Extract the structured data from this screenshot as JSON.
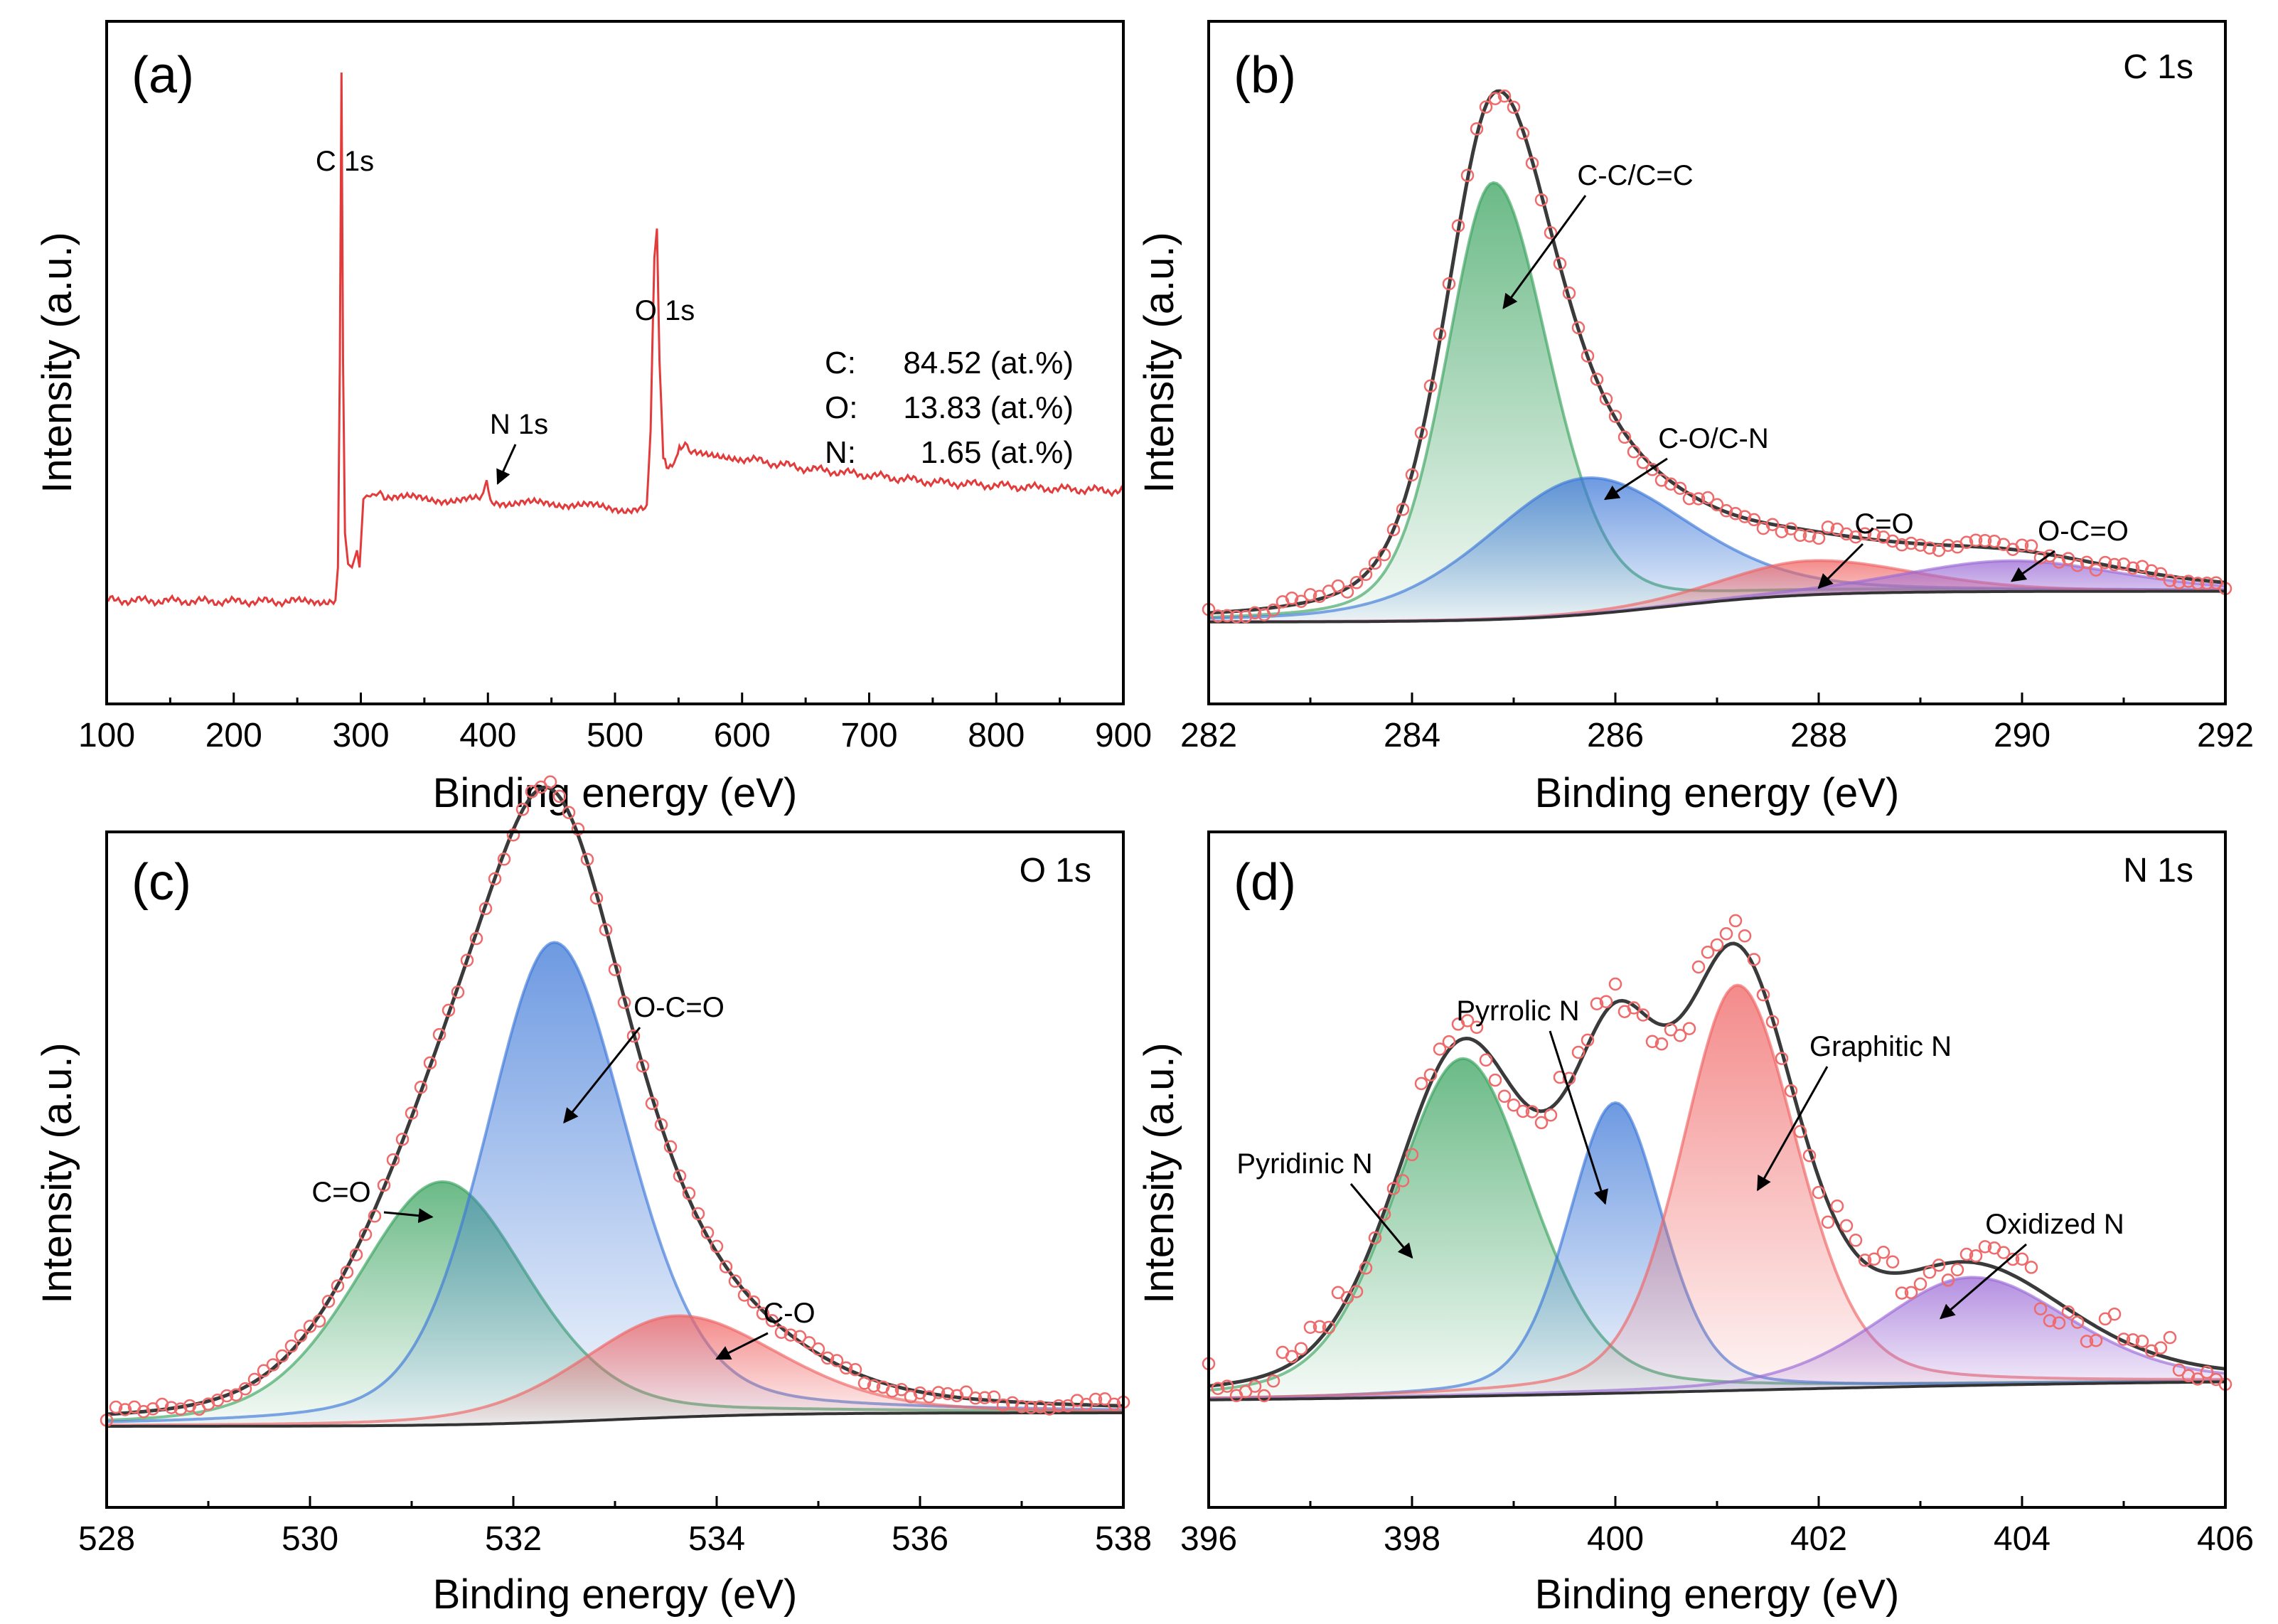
{
  "chart_data": [
    {
      "panel": "(a)",
      "type": "line",
      "corner_label": "",
      "xlabel": "Binding energy (eV)",
      "ylabel": "Intensity (a.u.)",
      "xlim": [
        100,
        900
      ],
      "ylim": [
        0,
        1.0
      ],
      "xticks": [
        100,
        200,
        300,
        400,
        500,
        600,
        700,
        800,
        900
      ],
      "colors": {
        "survey": "#e23b3b"
      },
      "survey_points": [
        [
          100,
          0.152
        ],
        [
          150,
          0.151
        ],
        [
          200,
          0.15
        ],
        [
          250,
          0.15
        ],
        [
          280,
          0.152
        ],
        [
          282,
          0.2
        ],
        [
          283.5,
          0.5
        ],
        [
          284.8,
          0.925
        ],
        [
          286,
          0.5
        ],
        [
          287.5,
          0.25
        ],
        [
          290,
          0.205
        ],
        [
          293,
          0.2
        ],
        [
          297,
          0.225
        ],
        [
          299,
          0.2
        ],
        [
          302,
          0.3
        ],
        [
          306,
          0.308
        ],
        [
          320,
          0.305
        ],
        [
          350,
          0.3
        ],
        [
          380,
          0.298
        ],
        [
          395,
          0.3
        ],
        [
          399,
          0.33
        ],
        [
          402,
          0.297
        ],
        [
          420,
          0.294
        ],
        [
          450,
          0.294
        ],
        [
          480,
          0.29
        ],
        [
          510,
          0.285
        ],
        [
          525,
          0.285
        ],
        [
          528,
          0.4
        ],
        [
          531,
          0.65
        ],
        [
          533,
          0.69
        ],
        [
          535,
          0.5
        ],
        [
          538,
          0.36
        ],
        [
          542,
          0.345
        ],
        [
          548,
          0.36
        ],
        [
          552,
          0.38
        ],
        [
          560,
          0.372
        ],
        [
          600,
          0.36
        ],
        [
          650,
          0.345
        ],
        [
          700,
          0.335
        ],
        [
          750,
          0.325
        ],
        [
          800,
          0.32
        ],
        [
          850,
          0.315
        ],
        [
          900,
          0.312
        ]
      ],
      "peak_labels": [
        {
          "text": "C 1s",
          "x": 284.8,
          "y": 0.925
        },
        {
          "text": "N 1s",
          "x": 399,
          "y": 0.33
        },
        {
          "text": "O 1s",
          "x": 532,
          "y": 0.69
        }
      ],
      "composition": [
        {
          "element": "C:",
          "value": "84.52 (at.%)"
        },
        {
          "element": "O:",
          "value": "13.83 (at.%)"
        },
        {
          "element": "N:",
          "value": "1.65 (at.%)"
        }
      ]
    },
    {
      "panel": "(b)",
      "type": "line",
      "corner_label": "C 1s",
      "xlabel": "Binding energy (eV)",
      "ylabel": "Intensity (a.u.)",
      "xlim": [
        282,
        292
      ],
      "ylim": [
        0,
        1.0
      ],
      "xticks": [
        282,
        284,
        286,
        288,
        290,
        292
      ],
      "baseline": {
        "start": [
          282,
          0.12
        ],
        "sigmoid_center": 286.5,
        "sigmoid_width": 0.7,
        "rise": 0.045
      },
      "components": [
        {
          "name": "C-C/C=C",
          "center": 284.8,
          "amplitude": 0.64,
          "fwhm_left": 1.1,
          "fwhm_right": 1.3,
          "color": "#3aa35f"
        },
        {
          "name": "C-O/C-N",
          "center": 285.7,
          "amplitude": 0.2,
          "fwhm_left": 2.3,
          "fwhm_right": 2.4,
          "color": "#3d78d8"
        },
        {
          "name": "C=O",
          "center": 287.9,
          "amplitude": 0.05,
          "fwhm_left": 2.0,
          "fwhm_right": 2.4,
          "color": "#f06464"
        },
        {
          "name": "O-C=O",
          "center": 289.9,
          "amplitude": 0.045,
          "fwhm_left": 2.5,
          "fwhm_right": 2.5,
          "color": "#9b6ad6"
        }
      ],
      "labels": [
        {
          "text": "C-C/C=C",
          "arrow_to": [
            284.9,
            0.58
          ]
        },
        {
          "text": "C-O/C-N",
          "arrow_to": [
            285.9,
            0.3
          ]
        },
        {
          "text": "C=O",
          "arrow_to": [
            288.0,
            0.17
          ]
        },
        {
          "text": "O-C=O",
          "arrow_to": [
            289.9,
            0.18
          ]
        }
      ],
      "scatter_color": "#ef6b6b"
    },
    {
      "panel": "(c)",
      "type": "line",
      "corner_label": "O 1s",
      "xlabel": "Binding energy (eV)",
      "ylabel": "Intensity (a.u.)",
      "xlim": [
        528,
        538
      ],
      "ylim": [
        0,
        1.0
      ],
      "xticks": [
        528,
        530,
        532,
        534,
        536,
        538
      ],
      "baseline": {
        "start": [
          528,
          0.12
        ],
        "sigmoid_center": 533,
        "sigmoid_width": 0.8,
        "rise": 0.02
      },
      "components": [
        {
          "name": "C=O",
          "center": 531.3,
          "amplitude": 0.36,
          "fwhm_left": 2.0,
          "fwhm_right": 2.0,
          "color": "#3aa35f"
        },
        {
          "name": "O-C=O",
          "center": 532.4,
          "amplitude": 0.71,
          "fwhm_left": 1.6,
          "fwhm_right": 1.7,
          "color": "#3d78d8"
        },
        {
          "name": "C-O",
          "center": 533.6,
          "amplitude": 0.15,
          "fwhm_left": 2.2,
          "fwhm_right": 2.4,
          "color": "#f06464"
        }
      ],
      "labels": [
        {
          "text": "O-C=O",
          "arrow_to": [
            532.5,
            0.57
          ]
        },
        {
          "text": "C=O",
          "arrow_to": [
            531.2,
            0.43
          ]
        },
        {
          "text": "C-O",
          "arrow_to": [
            534.0,
            0.22
          ]
        }
      ],
      "scatter_color": "#ef6b6b"
    },
    {
      "panel": "(d)",
      "type": "line",
      "corner_label": "N 1s",
      "xlabel": "Binding energy (eV)",
      "ylabel": "Intensity (a.u.)",
      "xlim": [
        396,
        406
      ],
      "ylim": [
        0,
        1.0
      ],
      "xticks": [
        396,
        398,
        400,
        402,
        404,
        406
      ],
      "baseline": {
        "start": [
          396,
          0.155
        ],
        "sigmoid_center": 401,
        "sigmoid_width": 2.5,
        "rise": 0.035
      },
      "components": [
        {
          "name": "Pyridinic N",
          "center": 398.5,
          "amplitude": 0.5,
          "fwhm_left": 1.6,
          "fwhm_right": 1.6,
          "color": "#3aa35f"
        },
        {
          "name": "Pyrrolic N",
          "center": 400.0,
          "amplitude": 0.43,
          "fwhm_left": 1.1,
          "fwhm_right": 1.1,
          "color": "#3d78d8"
        },
        {
          "name": "Graphitic N",
          "center": 401.2,
          "amplitude": 0.6,
          "fwhm_left": 1.3,
          "fwhm_right": 1.4,
          "color": "#f06464"
        },
        {
          "name": "Oxidized N",
          "center": 403.5,
          "amplitude": 0.16,
          "fwhm_left": 2.2,
          "fwhm_right": 2.3,
          "color": "#9b6ad6"
        }
      ],
      "labels": [
        {
          "text": "Pyrrolic N",
          "arrow_to": [
            399.9,
            0.45
          ]
        },
        {
          "text": "Graphitic N",
          "arrow_to": [
            401.4,
            0.47
          ]
        },
        {
          "text": "Pyridinic N",
          "arrow_to": [
            398.0,
            0.37
          ]
        },
        {
          "text": "Oxidized N",
          "arrow_to": [
            403.2,
            0.28
          ]
        }
      ],
      "scatter_color": "#ef6b6b"
    }
  ]
}
